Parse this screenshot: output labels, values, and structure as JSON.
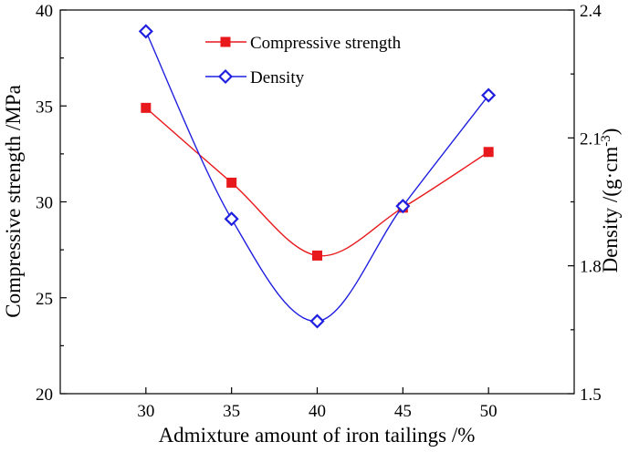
{
  "chart_data": {
    "type": "line",
    "x": [
      30,
      35,
      40,
      45,
      50
    ],
    "xlabel": "Admixture amount of iron tailings /%",
    "xlim": [
      25,
      55
    ],
    "xticks": [
      "30",
      "35",
      "40",
      "45",
      "50"
    ],
    "ylabel": "Compressive strength /MPa",
    "ylim": [
      20,
      40
    ],
    "yticks": [
      "20",
      "25",
      "30",
      "35",
      "40"
    ],
    "y2label": "Density /(g·cm",
    "y2label_sup": "-3",
    "y2label_end": ")",
    "y2lim": [
      1.5,
      2.4
    ],
    "y2ticks": [
      "1.5",
      "1.8",
      "2.1",
      "2.4"
    ],
    "legend_position": "top-center",
    "series": [
      {
        "name": "Compressive strength",
        "axis": "left",
        "marker": "filled-square",
        "color": "#e8191c",
        "values": [
          34.9,
          31.0,
          27.2,
          29.7,
          32.6
        ]
      },
      {
        "name": "Density",
        "axis": "right",
        "marker": "open-diamond",
        "color": "#1f1fe0",
        "values": [
          2.35,
          1.91,
          1.67,
          1.94,
          2.2
        ]
      }
    ]
  }
}
